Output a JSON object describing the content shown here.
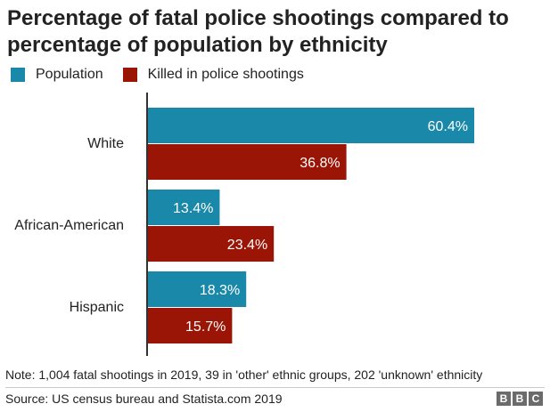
{
  "title": "Percentage of fatal police shootings compared to percentage of population by ethnicity",
  "note": "Note: 1,004 fatal shootings in 2019, 39 in 'other' ethnic groups, 202 'unknown' ethnicity",
  "source": "Source: US census bureau and Statista.com 2019",
  "logo": [
    "B",
    "B",
    "C"
  ],
  "colors": {
    "population": "#1a88a8",
    "killed": "#9a1505",
    "axis": "#333333",
    "bar_label": "#ffffff"
  },
  "chart_data": {
    "type": "bar",
    "orientation": "horizontal",
    "categories": [
      "White",
      "African-American",
      "Hispanic"
    ],
    "series": [
      {
        "name": "Population",
        "values": [
          60.4,
          13.4,
          18.3
        ],
        "labels": [
          "60.4%",
          "13.4%",
          "18.3%"
        ]
      },
      {
        "name": "Killed in police shootings",
        "values": [
          36.8,
          23.4,
          15.7
        ],
        "labels": [
          "36.8%",
          "23.4%",
          "15.7%"
        ]
      }
    ],
    "xlim": [
      0,
      75
    ],
    "grid": false,
    "legend_position": "top-left"
  }
}
